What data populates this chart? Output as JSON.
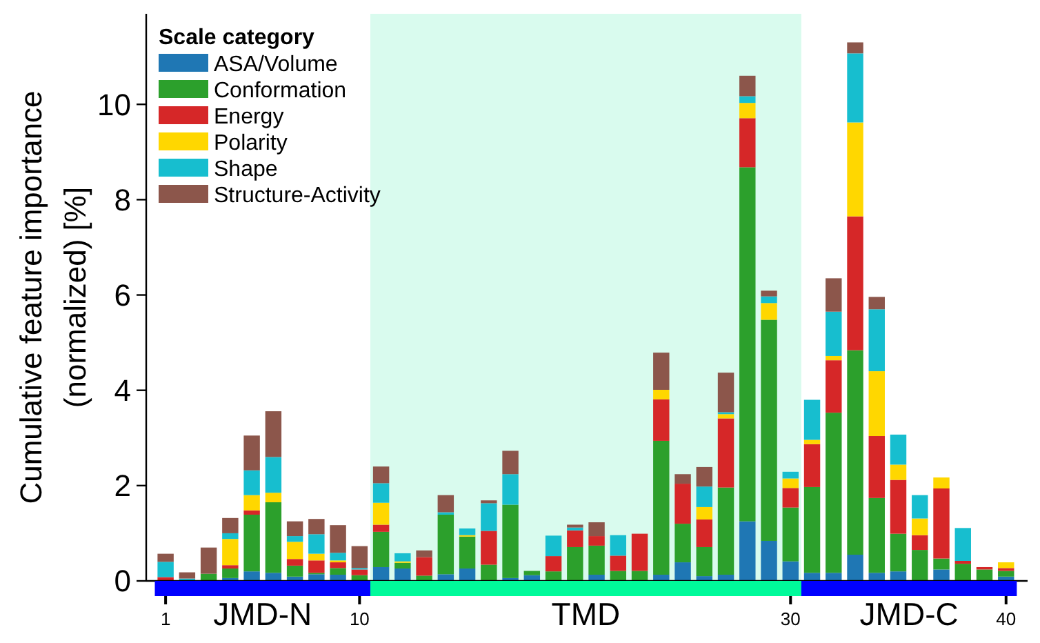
{
  "chart_data": {
    "type": "bar",
    "stacked": true,
    "ylabel": "Cumulative feature importance\n(normalized) [%]",
    "legend_title": "Scale category",
    "legend": "top left",
    "grid": false,
    "x": [
      1,
      2,
      3,
      4,
      5,
      6,
      7,
      8,
      9,
      10,
      11,
      12,
      13,
      14,
      15,
      16,
      17,
      18,
      19,
      20,
      21,
      22,
      23,
      24,
      25,
      26,
      27,
      28,
      29,
      30,
      31,
      32,
      33,
      34,
      35,
      36,
      37,
      38,
      39,
      40
    ],
    "xlim": [
      0.1,
      41
    ],
    "xticks": [
      1,
      10,
      30,
      40
    ],
    "ylim": [
      0,
      11.9
    ],
    "yticks": [
      0,
      2,
      4,
      6,
      8,
      10
    ],
    "bands": [
      {
        "axis": "x",
        "from": 10.5,
        "to": 30.5,
        "color": "#d9fbee"
      }
    ],
    "annotations": [
      "JMD-N",
      "TMD",
      "JMD-C"
    ],
    "series": [
      {
        "name": "ASA/Volume",
        "color": "#1f77b4",
        "values": [
          0,
          null,
          0,
          0.06,
          0.2,
          0.17,
          0.09,
          0.14,
          0.13,
          null,
          0.29,
          0.26,
          0,
          0.14,
          0.26,
          0,
          0.06,
          0.12,
          0,
          0,
          0.13,
          0,
          0,
          0.13,
          0.39,
          0.1,
          0.13,
          1.25,
          0.84,
          0.41,
          0.17,
          0.17,
          0.55,
          0.17,
          0.2,
          0,
          0.24,
          0,
          0,
          0.09
        ]
      },
      {
        "name": "Conformation",
        "color": "#2ca02c",
        "values": [
          0,
          0,
          0.15,
          0.2,
          1.19,
          1.48,
          0.23,
          0.03,
          0.14,
          0.12,
          0.74,
          0.12,
          0.11,
          1.25,
          0.67,
          0.34,
          1.54,
          0.09,
          0.2,
          0.71,
          0.61,
          0.21,
          0.21,
          2.81,
          0.81,
          0.61,
          1.83,
          7.43,
          4.64,
          1.13,
          1.8,
          3.36,
          4.29,
          1.57,
          0.79,
          0.65,
          0.23,
          0.36,
          0.24,
          0.12
        ]
      },
      {
        "name": "Energy",
        "color": "#d62728",
        "values": [
          0.08,
          0,
          0,
          0.07,
          0.09,
          0,
          0.14,
          0.26,
          0.12,
          0.12,
          0.15,
          0,
          0.39,
          0,
          0,
          0.71,
          0,
          0,
          0.32,
          0.35,
          0.2,
          0.32,
          0.78,
          0.87,
          0.84,
          0.58,
          1.45,
          1.03,
          0,
          0.41,
          0.9,
          1.1,
          2.81,
          1.3,
          1.13,
          0.31,
          1.47,
          0.06,
          0.05,
          0.06
        ]
      },
      {
        "name": "Polarity",
        "color": "#ffd700",
        "values": [
          0,
          0,
          0,
          0.55,
          0.32,
          0.2,
          0.36,
          0.14,
          0.04,
          0,
          0.46,
          0.03,
          0,
          0,
          0.03,
          0,
          0,
          0,
          0,
          0,
          0,
          0,
          0,
          0.2,
          0,
          0.26,
          0.09,
          0.32,
          0.35,
          0.2,
          0.09,
          0.09,
          1.97,
          1.36,
          0.32,
          0.35,
          0.23,
          0,
          0,
          0.12
        ]
      },
      {
        "name": "Shape",
        "color": "#17becf",
        "values": [
          0.32,
          0.05,
          0,
          0.12,
          0.52,
          0.75,
          0.12,
          0.41,
          0.16,
          0.03,
          0.41,
          0.17,
          0,
          0.05,
          0.14,
          0.58,
          0.64,
          0,
          0.43,
          0.06,
          0,
          0.43,
          0,
          0,
          0,
          0.43,
          0.04,
          0.14,
          0.14,
          0.14,
          0.84,
          0.93,
          1.45,
          1.3,
          0.63,
          0.49,
          0,
          0.69,
          0,
          0
        ]
      },
      {
        "name": "Structure-Activity",
        "color": "#8c564b",
        "values": [
          0.17,
          0.13,
          0.55,
          0.32,
          0.73,
          0.96,
          0.31,
          0.32,
          0.58,
          0.46,
          0.35,
          0,
          0.14,
          0.36,
          0,
          0.06,
          0.49,
          0,
          0,
          0.06,
          0.29,
          0,
          0,
          0.78,
          0.2,
          0.41,
          0.83,
          0.43,
          0.12,
          0,
          0,
          0.7,
          0.23,
          0.26,
          0,
          0,
          0,
          0,
          0,
          0
        ]
      }
    ]
  }
}
